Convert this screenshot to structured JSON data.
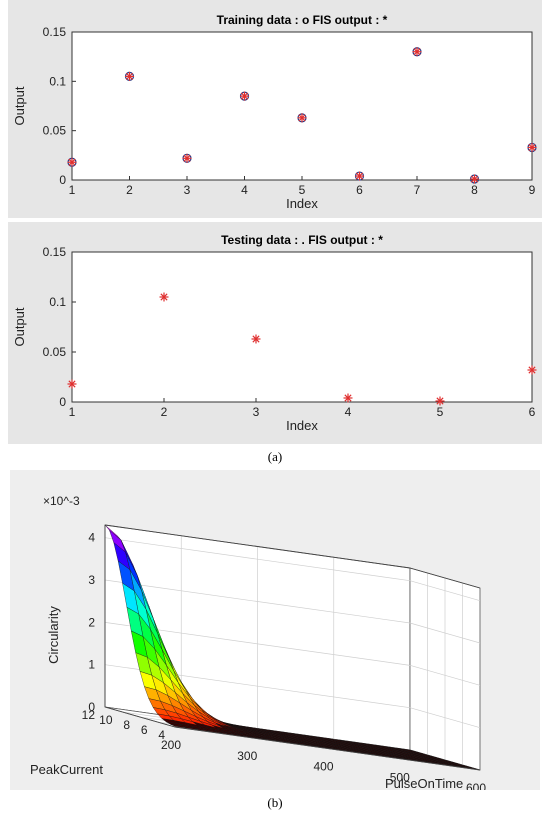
{
  "captions": {
    "a": "(a)",
    "b": "(b)"
  },
  "chart_data": [
    {
      "type": "scatter",
      "title": "Training data : o    FIS output : *",
      "xlabel": "Index",
      "ylabel": "Output",
      "xlim": [
        1,
        9
      ],
      "ylim": [
        0,
        0.15
      ],
      "x_ticks": [
        "1",
        "2",
        "3",
        "4",
        "5",
        "6",
        "7",
        "8",
        "9"
      ],
      "y_ticks": [
        "0",
        "0.05",
        "0.1",
        "0.15"
      ],
      "series": [
        {
          "name": "Training data",
          "marker": "o",
          "color": "#1f3a8a",
          "x": [
            1,
            2,
            3,
            4,
            5,
            6,
            7,
            8,
            9
          ],
          "y": [
            0.018,
            0.105,
            0.022,
            0.085,
            0.063,
            0.004,
            0.13,
            0.001,
            0.033
          ]
        },
        {
          "name": "FIS output",
          "marker": "*",
          "color": "#e03030",
          "x": [
            1,
            2,
            3,
            4,
            5,
            6,
            7,
            8,
            9
          ],
          "y": [
            0.018,
            0.105,
            0.022,
            0.085,
            0.063,
            0.004,
            0.13,
            0.001,
            0.033
          ]
        }
      ]
    },
    {
      "type": "scatter",
      "title": "Testing data : .    FIS output : *",
      "xlabel": "Index",
      "ylabel": "Output",
      "xlim": [
        1,
        6
      ],
      "ylim": [
        0,
        0.15
      ],
      "x_ticks": [
        "1",
        "2",
        "3",
        "4",
        "5",
        "6"
      ],
      "y_ticks": [
        "0",
        "0.05",
        "0.1",
        "0.15"
      ],
      "series": [
        {
          "name": "Testing data",
          "marker": ".",
          "color": "#1f3a8a",
          "x": [
            1,
            2,
            3,
            4,
            5,
            6
          ],
          "y": [
            0.018,
            0.105,
            0.063,
            0.004,
            0.001,
            0.032
          ]
        },
        {
          "name": "FIS output",
          "marker": "*",
          "color": "#e03030",
          "x": [
            1,
            2,
            3,
            4,
            5,
            6
          ],
          "y": [
            0.018,
            0.105,
            0.063,
            0.004,
            0.001,
            0.032
          ]
        }
      ]
    },
    {
      "type": "surface",
      "xlabel": "PulseOnTime",
      "ylabel": "PeakCurrent",
      "zlabel": "Circularity",
      "z_exponent": "×10^-3",
      "xlim": [
        200,
        600
      ],
      "ylim": [
        4,
        12
      ],
      "zlim": [
        0,
        4.3
      ],
      "x_ticks": [
        "200",
        "300",
        "400",
        "500",
        "600"
      ],
      "y_ticks": [
        "4",
        "6",
        "8",
        "10",
        "12"
      ],
      "z_ticks": [
        "0",
        "1",
        "2",
        "3",
        "4"
      ],
      "colormap": "hsv",
      "surface_description": "Circularity peaks at 4.3e-3 for low PulseOnTime and high PeakCurrent, decaying to zero as PulseOnTime increases"
    }
  ]
}
